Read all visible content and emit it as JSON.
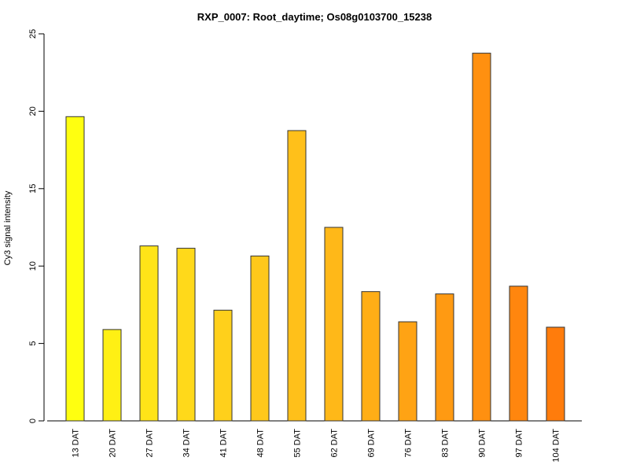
{
  "chart_data": {
    "type": "bar",
    "title": "RXP_0007: Root_daytime; Os08g0103700_15238",
    "xlabel": "",
    "ylabel": "Cy3 signal intensity",
    "ylim": [
      0,
      25
    ],
    "yticks": [
      0,
      5,
      10,
      15,
      20,
      25
    ],
    "grid": false,
    "categories": [
      "13 DAT",
      "20 DAT",
      "27 DAT",
      "34 DAT",
      "41 DAT",
      "48 DAT",
      "55 DAT",
      "62 DAT",
      "69 DAT",
      "76 DAT",
      "83 DAT",
      "90 DAT",
      "97 DAT",
      "104 DAT"
    ],
    "values": [
      19.65,
      5.9,
      11.3,
      11.15,
      7.15,
      10.65,
      18.75,
      12.5,
      8.35,
      6.4,
      8.2,
      23.75,
      8.7,
      6.05
    ],
    "colors": [
      "#ffff10",
      "#fff014",
      "#ffe418",
      "#ffd91a",
      "#ffd01b",
      "#ffc81b",
      "#ffc01a",
      "#ffb818",
      "#ffae16",
      "#ffa314",
      "#ff9a12",
      "#ff9010",
      "#ff860e",
      "#ff7c0c"
    ]
  }
}
